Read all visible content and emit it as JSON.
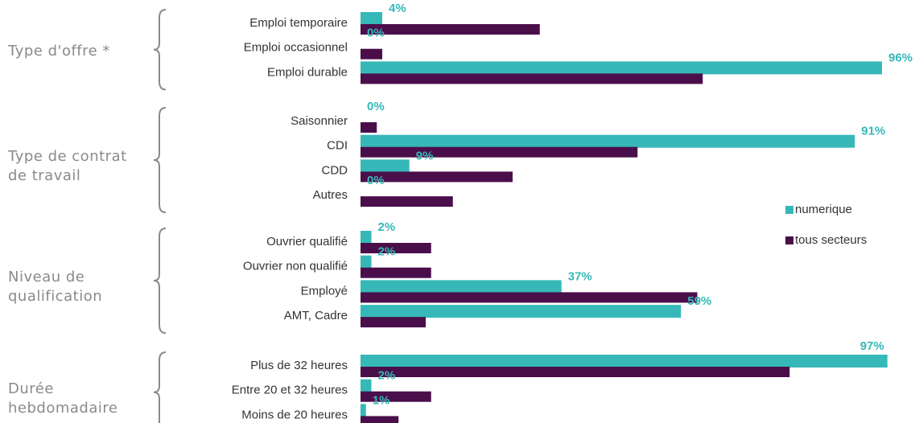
{
  "chart_data": {
    "type": "bar",
    "orientation": "horizontal",
    "groups": [
      {
        "name": "Type d'offre *",
        "categories": [
          "Emploi temporaire",
          "Emploi occasionnel",
          "Emploi durable"
        ]
      },
      {
        "name": "Type de contrat de travail",
        "categories": [
          "Saisonnier",
          "CDI",
          "CDD",
          "Autres"
        ]
      },
      {
        "name": "Niveau de qualification",
        "categories": [
          "Ouvrier qualifié",
          "Ouvrier non qualifié",
          "Employé",
          "AMT, Cadre"
        ]
      },
      {
        "name": "Durée hebdomadaire",
        "categories": [
          "Plus de 32 heures",
          "Entre 20 et 32 heures",
          "Moins de 20 heures"
        ]
      }
    ],
    "series": [
      {
        "name": "numerique",
        "color": "#36b8b8",
        "values": [
          4,
          0,
          96,
          0,
          91,
          9,
          0,
          2,
          2,
          37,
          59,
          97,
          2,
          1
        ],
        "value_labels": [
          "4%",
          "0%",
          "96%",
          "0%",
          "91%",
          "9%",
          "0%",
          "2%",
          "2%",
          "37%",
          "59%",
          "97%",
          "2%",
          "1%"
        ]
      },
      {
        "name": "tous secteurs",
        "color": "#4a0f4a",
        "values": [
          33,
          4,
          63,
          3,
          51,
          28,
          17,
          13,
          13,
          62,
          12,
          79,
          13,
          7
        ]
      }
    ],
    "xlim": [
      0,
      100
    ],
    "legend": "right"
  }
}
